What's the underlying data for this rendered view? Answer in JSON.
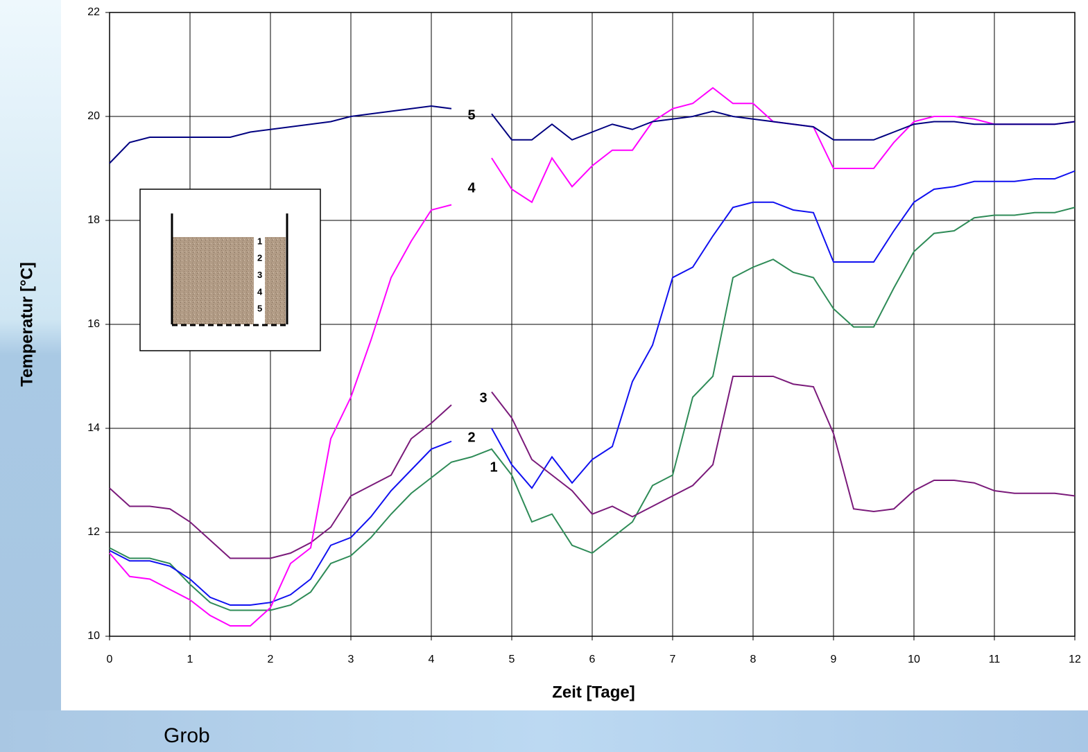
{
  "chart_data": {
    "type": "line",
    "y_label": "Temperatur [°C]",
    "x_label": "Zeit [Tage]",
    "x": [
      0,
      0.25,
      0.5,
      0.75,
      1,
      1.25,
      1.5,
      1.75,
      2,
      2.25,
      2.5,
      2.75,
      3,
      3.25,
      3.5,
      3.75,
      4,
      4.25,
      4.5,
      4.75,
      5,
      5.25,
      5.5,
      5.75,
      6,
      6.25,
      6.5,
      6.75,
      7,
      7.25,
      7.5,
      7.75,
      8,
      8.25,
      8.5,
      8.75,
      9,
      9.25,
      9.5,
      9.75,
      10,
      10.25,
      10.5,
      10.75,
      11,
      11.25,
      11.5,
      11.75,
      12
    ],
    "series": [
      {
        "name": "1",
        "color": "#2e8b57",
        "values": [
          11.7,
          11.5,
          11.5,
          11.4,
          11.0,
          10.65,
          10.5,
          10.5,
          10.5,
          10.6,
          10.85,
          11.4,
          11.55,
          11.9,
          12.35,
          12.75,
          13.05,
          13.35,
          13.45,
          13.6,
          13.1,
          12.2,
          12.35,
          11.75,
          11.6,
          11.9,
          12.2,
          12.9,
          13.1,
          14.6,
          15.0,
          16.9,
          17.1,
          17.25,
          17.0,
          16.9,
          16.3,
          15.95,
          15.95,
          16.7,
          17.4,
          17.75,
          17.8,
          18.05,
          18.1,
          18.1,
          18.15,
          18.15,
          18.25
        ]
      },
      {
        "name": "2",
        "color": "#1010f0",
        "values": [
          11.65,
          11.45,
          11.45,
          11.35,
          11.1,
          10.75,
          10.6,
          10.6,
          10.65,
          10.8,
          11.1,
          11.75,
          11.9,
          12.3,
          12.8,
          13.2,
          13.6,
          13.75,
          null,
          14.0,
          13.3,
          12.85,
          13.45,
          12.95,
          13.4,
          13.65,
          14.9,
          15.6,
          16.9,
          17.1,
          17.7,
          18.25,
          18.35,
          18.35,
          18.2,
          18.15,
          17.2,
          17.2,
          17.2,
          17.8,
          18.35,
          18.6,
          18.65,
          18.75,
          18.75,
          18.75,
          18.8,
          18.8,
          18.95
        ]
      },
      {
        "name": "3",
        "color": "#7a1a7a",
        "values": [
          12.85,
          12.5,
          12.5,
          12.45,
          12.2,
          11.85,
          11.5,
          11.5,
          11.5,
          11.6,
          11.8,
          12.1,
          12.7,
          12.9,
          13.1,
          13.8,
          14.1,
          14.45,
          null,
          14.7,
          14.2,
          13.4,
          13.1,
          12.8,
          12.35,
          12.5,
          12.3,
          12.5,
          12.7,
          12.9,
          13.3,
          15.0,
          15.0,
          15.0,
          14.85,
          14.8,
          13.9,
          12.45,
          12.4,
          12.45,
          12.8,
          13.0,
          13.0,
          12.95,
          12.8,
          12.75,
          12.75,
          12.75,
          12.7
        ]
      },
      {
        "name": "4",
        "color": "#ff00ff",
        "values": [
          11.6,
          11.15,
          11.1,
          10.9,
          10.7,
          10.4,
          10.2,
          10.2,
          10.55,
          11.4,
          11.7,
          13.8,
          14.6,
          15.7,
          16.9,
          17.6,
          18.2,
          18.3,
          null,
          19.2,
          18.6,
          18.35,
          19.2,
          18.65,
          19.05,
          19.35,
          19.35,
          19.9,
          20.15,
          20.25,
          20.55,
          20.25,
          20.25,
          19.9,
          19.85,
          19.8,
          19.0,
          19.0,
          19.0,
          19.5,
          19.9,
          20.0,
          20.0,
          19.95,
          19.85,
          19.85,
          19.85,
          19.85,
          19.9
        ]
      },
      {
        "name": "5",
        "color": "#000080",
        "values": [
          19.1,
          19.5,
          19.6,
          19.6,
          19.6,
          19.6,
          19.6,
          19.7,
          19.75,
          19.8,
          19.85,
          19.9,
          20.0,
          20.05,
          20.1,
          20.15,
          20.2,
          20.15,
          null,
          20.05,
          19.55,
          19.55,
          19.85,
          19.55,
          19.7,
          19.85,
          19.75,
          19.9,
          19.95,
          20.0,
          20.1,
          20.0,
          19.95,
          19.9,
          19.85,
          19.8,
          19.55,
          19.55,
          19.55,
          19.7,
          19.85,
          19.9,
          19.9,
          19.85,
          19.85,
          19.85,
          19.85,
          19.85,
          19.9
        ]
      }
    ],
    "xlim": [
      0,
      12
    ],
    "xticks": [
      0,
      1,
      2,
      3,
      4,
      5,
      6,
      7,
      8,
      9,
      10,
      11,
      12
    ],
    "ylim": [
      10,
      22
    ],
    "yticks": [
      10,
      12,
      14,
      16,
      18,
      20,
      22
    ],
    "grid": true,
    "inset_labels": [
      "1",
      "2",
      "3",
      "4",
      "5"
    ]
  },
  "caption": "Grob"
}
